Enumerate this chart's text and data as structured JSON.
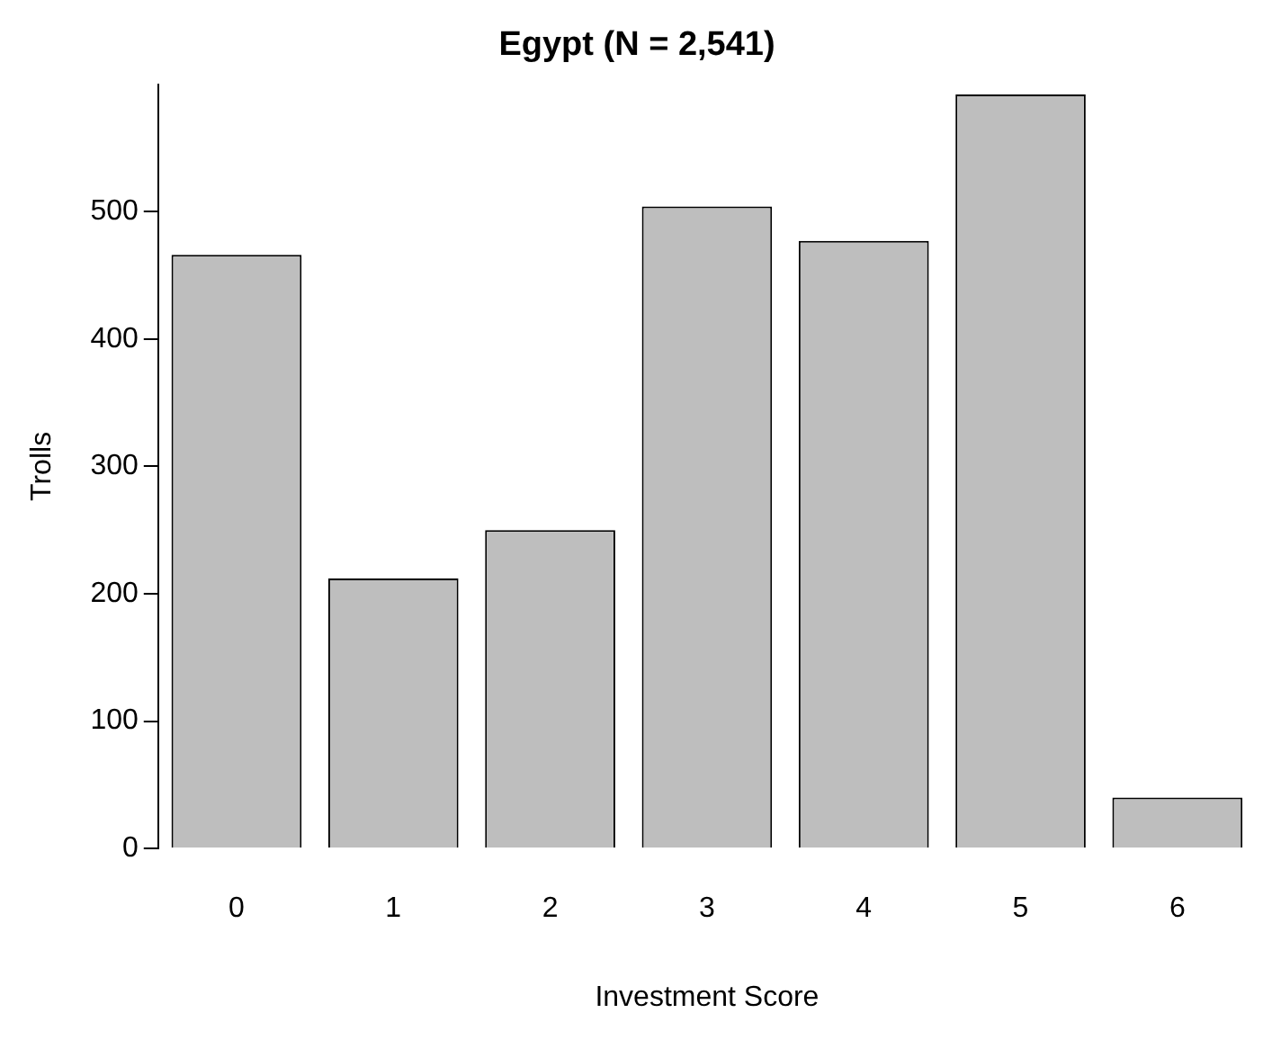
{
  "chart_data": {
    "type": "bar",
    "title": "Egypt (N = 2,541)",
    "xlabel": "Investment Score",
    "ylabel": "Trolls",
    "categories": [
      "0",
      "1",
      "2",
      "3",
      "4",
      "5",
      "6"
    ],
    "values": [
      466,
      212,
      250,
      504,
      477,
      592,
      40
    ],
    "color": "#bebebe",
    "ylim": [
      0,
      600
    ],
    "yticks": [
      0,
      100,
      200,
      300,
      400,
      500
    ]
  }
}
